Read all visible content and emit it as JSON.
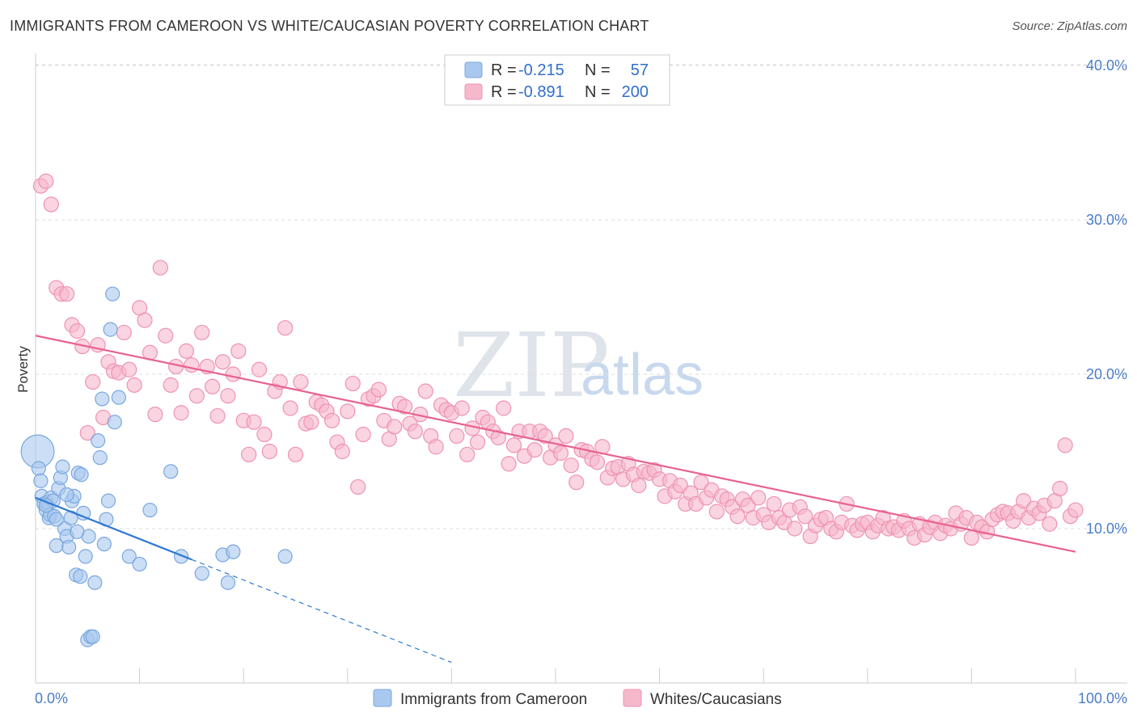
{
  "title": "IMMIGRANTS FROM CAMEROON VS WHITE/CAUCASIAN POVERTY CORRELATION CHART",
  "source": "Source: ZipAtlas.com",
  "watermark": {
    "part1": "ZIP",
    "part2": "atlas"
  },
  "legend": {
    "row1": {
      "r_label": "R =",
      "r_value": "-0.215",
      "n_label": "N =",
      "n_value": "57"
    },
    "row2": {
      "r_label": "R =",
      "r_value": "-0.891",
      "n_label": "N =",
      "n_value": "200"
    }
  },
  "bottom_legend": {
    "series1": "Immigrants from Cameroon",
    "series2": "Whites/Caucasians"
  },
  "colors": {
    "blue_fill": "#a9c8ef",
    "blue_stroke": "#7aa7df",
    "blue_line": "#2f78d4",
    "pink_fill": "#f6b8cb",
    "pink_stroke": "#ee93b0",
    "pink_line": "#e8628f",
    "grid": "#dddddd",
    "tick_text": "#4a7cc9"
  },
  "chart_data": {
    "type": "scatter",
    "title": "IMMIGRANTS FROM CAMEROON VS WHITE/CAUCASIAN POVERTY CORRELATION CHART",
    "xlabel": "",
    "ylabel": "Poverty",
    "xlim": [
      0,
      100
    ],
    "ylim": [
      0,
      42
    ],
    "x_tick_labels": [
      "0.0%",
      "100.0%"
    ],
    "y_ticks": [
      10,
      20,
      30,
      40
    ],
    "y_tick_labels": [
      "10.0%",
      "20.0%",
      "30.0%",
      "40.0%"
    ],
    "grid": true,
    "series": [
      {
        "name": "Immigrants from Cameroon",
        "trend": {
          "x0": 0,
          "y0": 12.0,
          "x1": 15,
          "y1": 8.0,
          "dashed_to_x": 40
        },
        "points": [
          [
            0.2,
            15.0,
            24
          ],
          [
            0.3,
            13.9,
            10
          ],
          [
            0.5,
            13.1,
            10
          ],
          [
            0.6,
            12.1,
            10
          ],
          [
            0.8,
            11.6,
            10
          ],
          [
            1.0,
            11.2,
            10
          ],
          [
            1.1,
            11.7,
            10
          ],
          [
            1.3,
            10.7,
            10
          ],
          [
            1.4,
            10.9,
            10
          ],
          [
            1.5,
            12.0,
            10
          ],
          [
            1.7,
            11.8,
            10
          ],
          [
            1.8,
            10.8,
            10
          ],
          [
            2.0,
            8.9,
            10
          ],
          [
            2.2,
            12.6,
            10
          ],
          [
            2.4,
            13.3,
            10
          ],
          [
            2.6,
            14.0,
            10
          ],
          [
            2.8,
            10.0,
            10
          ],
          [
            3.0,
            9.5,
            10
          ],
          [
            3.2,
            8.8,
            10
          ],
          [
            3.4,
            10.7,
            10
          ],
          [
            3.5,
            11.8,
            10
          ],
          [
            3.7,
            12.1,
            10
          ],
          [
            3.9,
            7.0,
            10
          ],
          [
            4.1,
            13.6,
            10
          ],
          [
            4.3,
            6.9,
            10
          ],
          [
            4.4,
            13.5,
            10
          ],
          [
            4.6,
            11.0,
            10
          ],
          [
            4.8,
            8.2,
            10
          ],
          [
            5.0,
            2.8,
            10
          ],
          [
            5.1,
            9.5,
            10
          ],
          [
            5.3,
            3.0,
            10
          ],
          [
            5.5,
            3.0,
            10
          ],
          [
            5.7,
            6.5,
            10
          ],
          [
            6.0,
            15.7,
            10
          ],
          [
            6.2,
            14.6,
            10
          ],
          [
            6.4,
            18.4,
            10
          ],
          [
            6.6,
            9.0,
            10
          ],
          [
            6.8,
            10.6,
            10
          ],
          [
            7.0,
            11.8,
            10
          ],
          [
            7.2,
            22.9,
            10
          ],
          [
            7.4,
            25.2,
            10
          ],
          [
            7.6,
            16.9,
            10
          ],
          [
            8.0,
            18.5,
            10
          ],
          [
            9.0,
            8.2,
            10
          ],
          [
            10.0,
            7.7,
            10
          ],
          [
            11.0,
            11.2,
            10
          ],
          [
            13.0,
            13.7,
            10
          ],
          [
            14.0,
            8.2,
            10
          ],
          [
            16.0,
            7.1,
            10
          ],
          [
            18.0,
            8.3,
            10
          ],
          [
            18.5,
            6.5,
            10
          ],
          [
            19.0,
            8.5,
            10
          ],
          [
            24.0,
            8.2,
            10
          ],
          [
            2.0,
            10.6,
            10
          ],
          [
            3.0,
            12.2,
            10
          ],
          [
            4.0,
            9.8,
            10
          ],
          [
            1.0,
            11.5,
            10
          ]
        ]
      },
      {
        "name": "Whites/Caucasians",
        "trend": {
          "x0": 0,
          "y0": 22.5,
          "x1": 100,
          "y1": 8.5
        },
        "points": [
          [
            0.5,
            32.2
          ],
          [
            1.0,
            32.5
          ],
          [
            1.5,
            31.0
          ],
          [
            2.0,
            25.6
          ],
          [
            2.5,
            25.2
          ],
          [
            3.0,
            25.2
          ],
          [
            3.5,
            23.2
          ],
          [
            4.0,
            22.8
          ],
          [
            4.5,
            21.8
          ],
          [
            5.0,
            16.2
          ],
          [
            5.5,
            19.5
          ],
          [
            6.0,
            21.9
          ],
          [
            6.5,
            17.2
          ],
          [
            7.0,
            20.8
          ],
          [
            7.5,
            20.2
          ],
          [
            8.0,
            20.1
          ],
          [
            8.5,
            22.7
          ],
          [
            9.0,
            20.3
          ],
          [
            9.5,
            19.3
          ],
          [
            10.0,
            24.3
          ],
          [
            10.5,
            23.5
          ],
          [
            11.0,
            21.4
          ],
          [
            11.5,
            17.4
          ],
          [
            12.0,
            26.9
          ],
          [
            12.5,
            22.5
          ],
          [
            13.0,
            19.3
          ],
          [
            13.5,
            20.5
          ],
          [
            14.0,
            17.5
          ],
          [
            14.5,
            21.5
          ],
          [
            15.0,
            20.6
          ],
          [
            15.5,
            18.6
          ],
          [
            16.0,
            22.7
          ],
          [
            16.5,
            20.5
          ],
          [
            17.0,
            19.2
          ],
          [
            17.5,
            17.3
          ],
          [
            18.0,
            20.8
          ],
          [
            18.5,
            18.6
          ],
          [
            19.0,
            20.0
          ],
          [
            19.5,
            21.5
          ],
          [
            20.0,
            17.0
          ],
          [
            20.5,
            14.8
          ],
          [
            21.0,
            16.9
          ],
          [
            21.5,
            20.3
          ],
          [
            22.0,
            16.1
          ],
          [
            22.5,
            15.0
          ],
          [
            23.0,
            18.9
          ],
          [
            23.5,
            19.5
          ],
          [
            24.0,
            23.0
          ],
          [
            24.5,
            17.8
          ],
          [
            25.0,
            14.8
          ],
          [
            25.5,
            19.5
          ],
          [
            26.0,
            16.8
          ],
          [
            26.5,
            16.9
          ],
          [
            27.0,
            18.2
          ],
          [
            27.5,
            18.0
          ],
          [
            28.0,
            17.6
          ],
          [
            28.5,
            17.0
          ],
          [
            29.0,
            15.6
          ],
          [
            29.5,
            15.0
          ],
          [
            30.0,
            17.6
          ],
          [
            30.5,
            19.4
          ],
          [
            31.0,
            12.7
          ],
          [
            31.5,
            16.1
          ],
          [
            32.0,
            18.4
          ],
          [
            32.5,
            18.6
          ],
          [
            33.0,
            19.0
          ],
          [
            33.5,
            17.0
          ],
          [
            34.0,
            15.8
          ],
          [
            34.5,
            16.6
          ],
          [
            35.0,
            18.1
          ],
          [
            35.5,
            17.9
          ],
          [
            36.0,
            16.8
          ],
          [
            36.5,
            16.3
          ],
          [
            37.0,
            17.4
          ],
          [
            37.5,
            18.9
          ],
          [
            38.0,
            16.0
          ],
          [
            38.5,
            15.3
          ],
          [
            39.0,
            18.0
          ],
          [
            39.5,
            17.7
          ],
          [
            40.0,
            17.5
          ],
          [
            40.5,
            16.0
          ],
          [
            41.0,
            17.8
          ],
          [
            41.5,
            14.8
          ],
          [
            42.0,
            16.5
          ],
          [
            42.5,
            15.6
          ],
          [
            43.0,
            17.2
          ],
          [
            43.5,
            16.9
          ],
          [
            44.0,
            16.3
          ],
          [
            44.5,
            15.9
          ],
          [
            45.0,
            17.8
          ],
          [
            45.5,
            14.2
          ],
          [
            46.0,
            15.4
          ],
          [
            46.5,
            16.3
          ],
          [
            47.0,
            14.7
          ],
          [
            47.5,
            16.3
          ],
          [
            48.0,
            15.1
          ],
          [
            48.5,
            16.3
          ],
          [
            49.0,
            16.0
          ],
          [
            49.5,
            14.6
          ],
          [
            50.0,
            15.4
          ],
          [
            50.5,
            14.9
          ],
          [
            51.0,
            16.0
          ],
          [
            51.5,
            14.1
          ],
          [
            52.0,
            13.0
          ],
          [
            52.5,
            15.1
          ],
          [
            53.0,
            15.0
          ],
          [
            53.5,
            14.5
          ],
          [
            54.0,
            14.3
          ],
          [
            54.5,
            15.3
          ],
          [
            55.0,
            13.3
          ],
          [
            55.5,
            13.9
          ],
          [
            56.0,
            14.0
          ],
          [
            56.5,
            13.2
          ],
          [
            57.0,
            14.2
          ],
          [
            57.5,
            13.5
          ],
          [
            58.0,
            12.8
          ],
          [
            58.5,
            13.7
          ],
          [
            59.0,
            13.6
          ],
          [
            59.5,
            13.8
          ],
          [
            60.0,
            13.2
          ],
          [
            60.5,
            12.1
          ],
          [
            61.0,
            13.1
          ],
          [
            61.5,
            12.4
          ],
          [
            62.0,
            12.8
          ],
          [
            62.5,
            11.6
          ],
          [
            63.0,
            12.3
          ],
          [
            63.5,
            11.6
          ],
          [
            64.0,
            13.0
          ],
          [
            64.5,
            12.0
          ],
          [
            65.0,
            12.5
          ],
          [
            65.5,
            11.1
          ],
          [
            66.0,
            12.1
          ],
          [
            66.5,
            11.9
          ],
          [
            67.0,
            11.4
          ],
          [
            67.5,
            10.8
          ],
          [
            68.0,
            11.9
          ],
          [
            68.5,
            11.5
          ],
          [
            69.0,
            10.7
          ],
          [
            69.5,
            12.0
          ],
          [
            70.0,
            10.9
          ],
          [
            70.5,
            10.4
          ],
          [
            71.0,
            11.6
          ],
          [
            71.5,
            10.7
          ],
          [
            72.0,
            10.4
          ],
          [
            72.5,
            11.2
          ],
          [
            73.0,
            10.0
          ],
          [
            73.5,
            11.4
          ],
          [
            74.0,
            10.8
          ],
          [
            74.5,
            9.5
          ],
          [
            75.0,
            10.2
          ],
          [
            75.5,
            10.6
          ],
          [
            76.0,
            10.7
          ],
          [
            76.5,
            10.0
          ],
          [
            77.0,
            9.8
          ],
          [
            77.5,
            10.4
          ],
          [
            78.0,
            11.6
          ],
          [
            78.5,
            10.2
          ],
          [
            79.0,
            9.9
          ],
          [
            79.5,
            10.3
          ],
          [
            80.0,
            10.4
          ],
          [
            80.5,
            9.8
          ],
          [
            81.0,
            10.2
          ],
          [
            81.5,
            10.7
          ],
          [
            82.0,
            10.0
          ],
          [
            82.5,
            10.1
          ],
          [
            83.0,
            9.9
          ],
          [
            83.5,
            10.5
          ],
          [
            84.0,
            10.0
          ],
          [
            84.5,
            9.4
          ],
          [
            85.0,
            10.3
          ],
          [
            85.5,
            9.6
          ],
          [
            86.0,
            10.1
          ],
          [
            86.5,
            10.4
          ],
          [
            87.0,
            9.7
          ],
          [
            87.5,
            10.2
          ],
          [
            88.0,
            10.0
          ],
          [
            88.5,
            11.0
          ],
          [
            89.0,
            10.3
          ],
          [
            89.5,
            10.7
          ],
          [
            90.0,
            9.4
          ],
          [
            90.5,
            10.4
          ],
          [
            91.0,
            10.1
          ],
          [
            91.5,
            9.8
          ],
          [
            92.0,
            10.6
          ],
          [
            92.5,
            10.9
          ],
          [
            93.0,
            11.1
          ],
          [
            93.5,
            11.0
          ],
          [
            94.0,
            10.5
          ],
          [
            94.5,
            11.1
          ],
          [
            95.0,
            11.8
          ],
          [
            95.5,
            10.7
          ],
          [
            96.0,
            11.3
          ],
          [
            96.5,
            11.0
          ],
          [
            97.0,
            11.5
          ],
          [
            97.5,
            10.3
          ],
          [
            98.0,
            11.8
          ],
          [
            98.5,
            12.6
          ],
          [
            99.0,
            15.4
          ],
          [
            99.5,
            10.8
          ],
          [
            100.0,
            11.2
          ]
        ]
      }
    ]
  }
}
